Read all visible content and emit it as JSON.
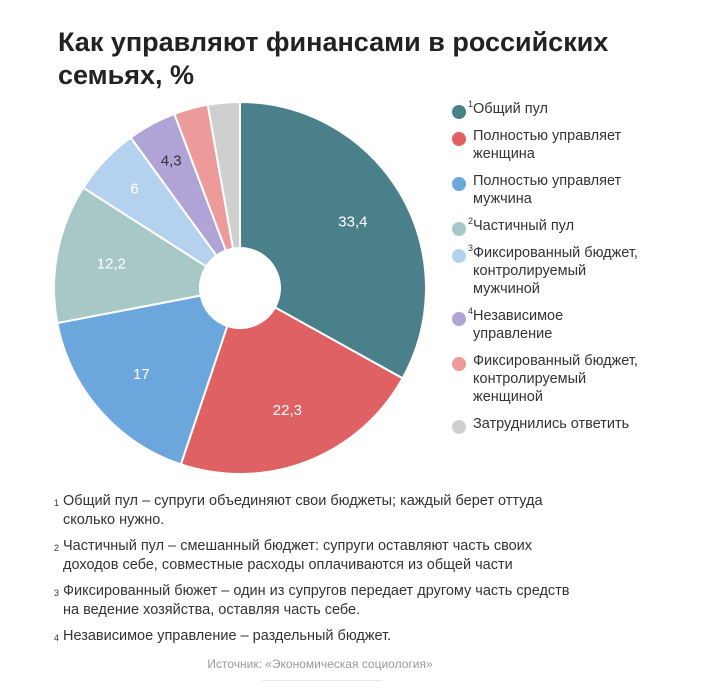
{
  "chart_data": {
    "type": "pie",
    "donut": true,
    "title": "Как управляют финансами в российских семьях, %",
    "slices": [
      {
        "label": [
          "Общий пул"
        ],
        "note": "1",
        "value": 33.4,
        "value_label": "33,4",
        "color": "#4a8089",
        "text_color": "#ffffff"
      },
      {
        "label": [
          "Полностью управляет",
          "женщина"
        ],
        "note": "",
        "value": 22.3,
        "value_label": "22,3",
        "color": "#e06164",
        "text_color": "#ffffff"
      },
      {
        "label": [
          "Полностью управляет",
          "мужчина"
        ],
        "note": "",
        "value": 17,
        "value_label": "17",
        "color": "#6ba6dc",
        "text_color": "#ffffff"
      },
      {
        "label": [
          "Частичный пул"
        ],
        "note": "2",
        "value": 12.2,
        "value_label": "12,2",
        "color": "#a8c8c8",
        "text_color": "#ffffff"
      },
      {
        "label": [
          "Фиксированный бюджет,",
          "контролируемый",
          "мужчиной"
        ],
        "note": "3",
        "value": 6,
        "value_label": "6",
        "color": "#b4d2ef",
        "text_color": "#ffffff"
      },
      {
        "label": [
          "Независимое",
          "управление"
        ],
        "note": "4",
        "value": 4.3,
        "value_label": "4,3",
        "color": "#b0a4d6",
        "text_color": "#333333"
      },
      {
        "label": [
          "Фиксированный бюджет,",
          "контролируемый",
          "женщиной"
        ],
        "note": "",
        "value": 3,
        "value_label": "",
        "color": "#ec9a9a",
        "text_color": "#333333"
      },
      {
        "label": [
          "Затруднились ответить"
        ],
        "note": "",
        "value": 2.8,
        "value_label": "",
        "color": "#cfcfcf",
        "text_color": "#333333"
      }
    ]
  },
  "footnotes": [
    {
      "num": "1",
      "lines": [
        "Общий пул – супруги объединяют свои бюджеты; каждый берет оттуда",
        "сколько нужно."
      ]
    },
    {
      "num": "2",
      "lines": [
        "Частичный пул – смешанный бюджет: супруги оставляют часть своих",
        "доходов себе, совместные расходы оплачиваются из общей части"
      ]
    },
    {
      "num": "3",
      "lines": [
        "Фиксированный бюжет – один из супругов передает другому часть средств",
        "на ведение хозяйства, оставляя часть себе."
      ]
    },
    {
      "num": "4",
      "lines": [
        "Независимое управление – раздельный бюджет."
      ]
    }
  ],
  "source": "Источник: «Экономическая социология»"
}
